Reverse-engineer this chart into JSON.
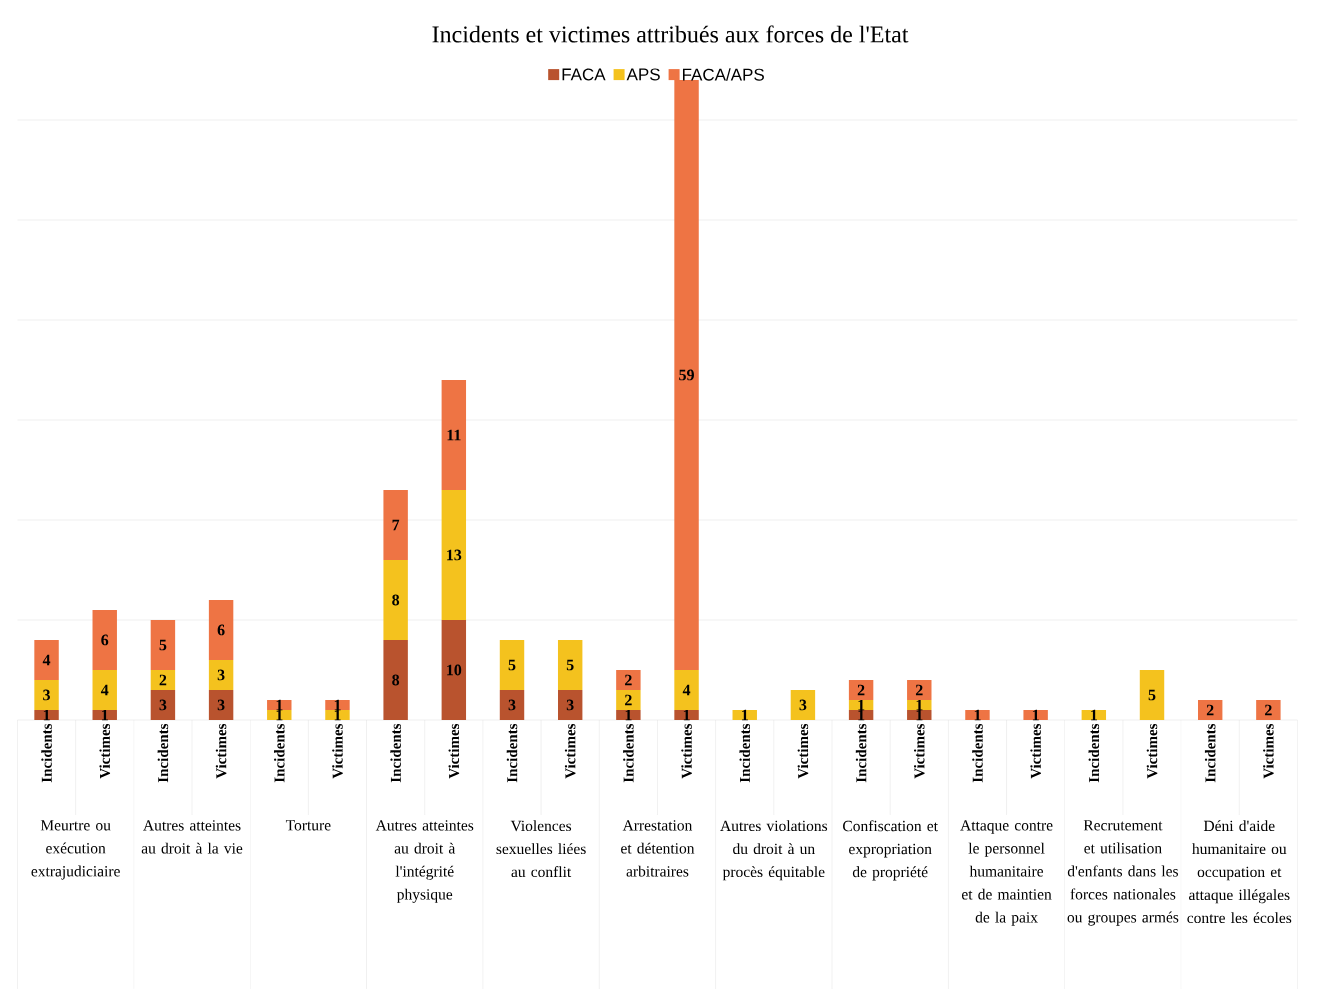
{
  "chart_data": {
    "type": "bar",
    "stacked": true,
    "title": "Incidents et victimes attribués aux forces de l'Etat",
    "categories": [
      "Incidents",
      "Victimes",
      "Incidents",
      "Victimes",
      "Incidents",
      "Victimes",
      "Incidents",
      "Victimes",
      "Incidents",
      "Victimes",
      "Incidents",
      "Victimes",
      "Incidents",
      "Victimes",
      "Incidents",
      "Victimes",
      "Incidents",
      "Victimes",
      "Incidents",
      "Victimes",
      "Incidents",
      "Victimes"
    ],
    "annotations": [
      "Meurtre ou exécution extrajudiciaire",
      "Autres atteintes au droit à la vie",
      "Torture",
      "Autres atteintes au droit à l'intégrité physique",
      "Violences sexuelles liées au conflit",
      "Arrestation et détention arbitraires",
      "Autres violations du droit à un procès équitable",
      "Confiscation et expropriation de propriété",
      "Attaque contre le personnel humanitaire et de maintien de la paix",
      "Recrutement et utilisation d'enfants dans les forces nationales ou groupes armés",
      "Déni d'aide humanitaire ou occupation et attaque illégales contre les écoles"
    ],
    "series": [
      {
        "name": "FACA",
        "color": "#b9532e",
        "values": [
          1,
          1,
          3,
          3,
          null,
          null,
          8,
          10,
          3,
          3,
          1,
          1,
          null,
          null,
          1,
          1,
          null,
          null,
          null,
          null,
          null,
          null
        ]
      },
      {
        "name": "APS",
        "color": "#f4c21e",
        "values": [
          3,
          4,
          2,
          3,
          1,
          1,
          8,
          13,
          5,
          5,
          2,
          4,
          1,
          3,
          1,
          1,
          null,
          null,
          1,
          5,
          null,
          null
        ]
      },
      {
        "name": "FACA/APS",
        "color": "#ee7444",
        "values": [
          4,
          6,
          5,
          6,
          1,
          1,
          7,
          11,
          null,
          null,
          2,
          59,
          null,
          null,
          2,
          2,
          1,
          1,
          null,
          null,
          2,
          2
        ]
      }
    ],
    "ylim": [
      0,
      65
    ],
    "tick_labels": "x",
    "grid": "y",
    "legend": "top",
    "data_labels": true
  }
}
